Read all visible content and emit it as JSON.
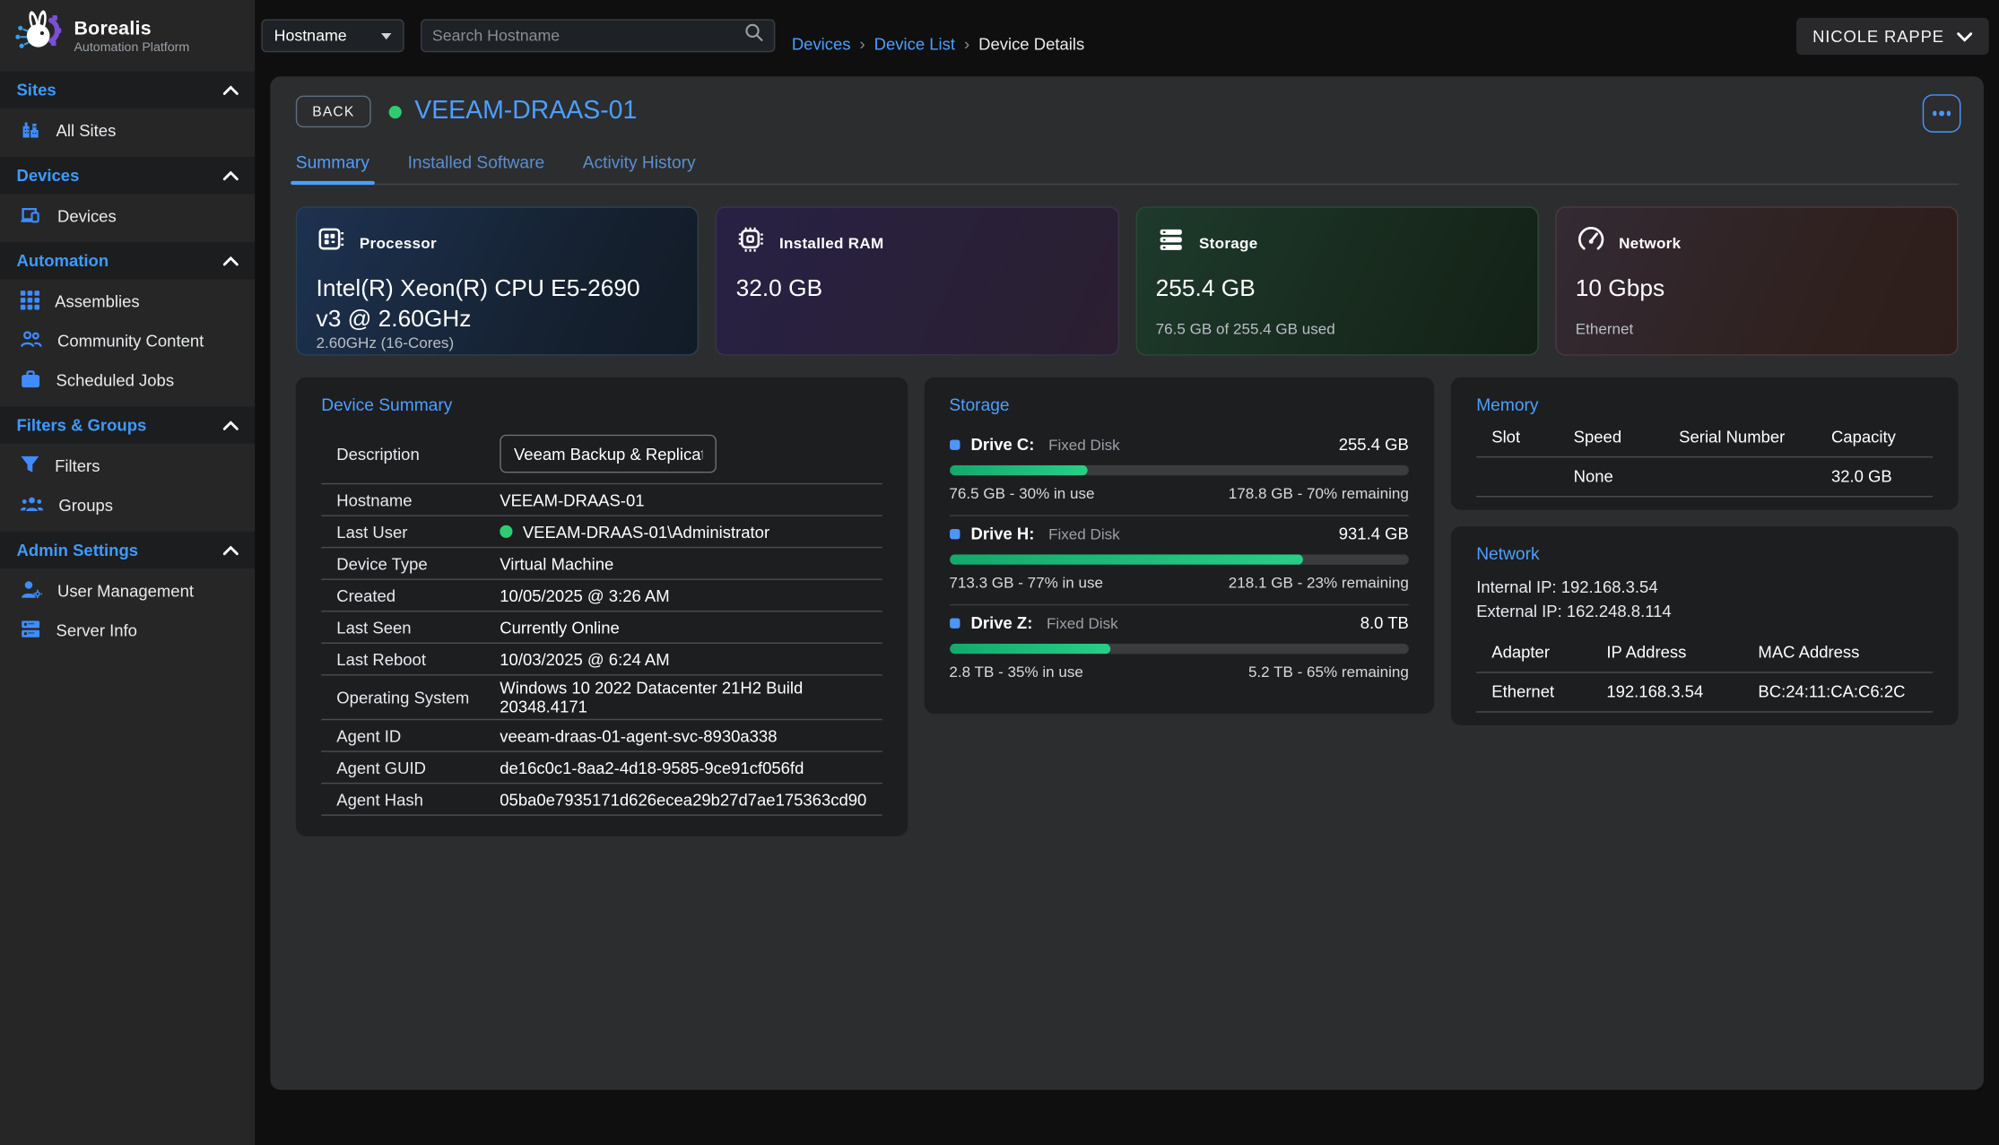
{
  "colors": {
    "accent_blue": "#4d9fff",
    "online_green": "#2ecc71",
    "progress_green": "#1fc97f"
  },
  "sidebar": {
    "logo_title": "Borealis",
    "logo_subtitle": "Automation Platform",
    "sections": [
      {
        "label": "Sites",
        "items": [
          {
            "label": "All Sites",
            "icon": "buildings-icon"
          }
        ]
      },
      {
        "label": "Devices",
        "items": [
          {
            "label": "Devices",
            "icon": "devices-icon"
          }
        ]
      },
      {
        "label": "Automation",
        "items": [
          {
            "label": "Assemblies",
            "icon": "grid-icon"
          },
          {
            "label": "Community Content",
            "icon": "people-icon"
          },
          {
            "label": "Scheduled Jobs",
            "icon": "briefcase-icon"
          }
        ]
      },
      {
        "label": "Filters & Groups",
        "items": [
          {
            "label": "Filters",
            "icon": "funnel-icon"
          },
          {
            "label": "Groups",
            "icon": "group-icon"
          }
        ]
      },
      {
        "label": "Admin Settings",
        "items": [
          {
            "label": "User Management",
            "icon": "user-gear-icon"
          },
          {
            "label": "Server Info",
            "icon": "server-icon"
          }
        ]
      }
    ]
  },
  "topbar": {
    "filter_select": "Hostname",
    "search_placeholder": "Search Hostname",
    "breadcrumbs": [
      "Devices",
      "Device List",
      "Device Details"
    ],
    "breadcrumb_sep": "›",
    "user": "NICOLE RAPPE"
  },
  "device_header": {
    "back": "BACK",
    "title": "VEEAM-DRAAS-01",
    "tabs": [
      "Summary",
      "Installed Software",
      "Activity History"
    ],
    "active_tab": "Summary"
  },
  "stat_cards": [
    {
      "label": "Processor",
      "value": "Intel(R) Xeon(R) CPU E5-2690 v3 @ 2.60GHz",
      "sub": "2.60GHz (16-Cores)",
      "icon": "cpu-icon"
    },
    {
      "label": "Installed RAM",
      "value": "32.0 GB",
      "sub": "",
      "icon": "ram-chip-icon"
    },
    {
      "label": "Storage",
      "value": "255.4 GB",
      "sub": "76.5 GB of 255.4 GB used",
      "icon": "storage-stack-icon"
    },
    {
      "label": "Network",
      "value": "10 Gbps",
      "sub": "Ethernet",
      "icon": "gauge-icon"
    }
  ],
  "device_summary": {
    "title": "Device Summary",
    "description_label": "Description",
    "description_value": "Veeam Backup & Replication",
    "rows": [
      {
        "label": "Hostname",
        "value": "VEEAM-DRAAS-01"
      },
      {
        "label": "Last User",
        "value": "VEEAM-DRAAS-01\\Administrator",
        "online": true
      },
      {
        "label": "Device Type",
        "value": "Virtual Machine"
      },
      {
        "label": "Created",
        "value": "10/05/2025 @ 3:26 AM"
      },
      {
        "label": "Last Seen",
        "value": "Currently Online"
      },
      {
        "label": "Last Reboot",
        "value": "10/03/2025 @ 6:24 AM"
      },
      {
        "label": "Operating System",
        "value": "Windows 10 2022 Datacenter 21H2 Build 20348.4171"
      },
      {
        "label": "Agent ID",
        "value": "veeam-draas-01-agent-svc-8930a338"
      },
      {
        "label": "Agent GUID",
        "value": "de16c0c1-8aa2-4d18-9585-9ce91cf056fd"
      },
      {
        "label": "Agent Hash",
        "value": "05ba0e7935171d626ecea29b27d7ae175363cd90"
      }
    ]
  },
  "storage_panel": {
    "title": "Storage",
    "drives": [
      {
        "name": "Drive C:",
        "type": "Fixed Disk",
        "size": "255.4 GB",
        "pct": 30,
        "used": "76.5 GB - 30% in use",
        "remaining": "178.8 GB - 70% remaining"
      },
      {
        "name": "Drive H:",
        "type": "Fixed Disk",
        "size": "931.4 GB",
        "pct": 77,
        "used": "713.3 GB - 77% in use",
        "remaining": "218.1 GB - 23% remaining"
      },
      {
        "name": "Drive Z:",
        "type": "Fixed Disk",
        "size": "8.0 TB",
        "pct": 35,
        "used": "2.8 TB - 35% in use",
        "remaining": "5.2 TB - 65% remaining"
      }
    ]
  },
  "memory_panel": {
    "title": "Memory",
    "headers": [
      "Slot",
      "Speed",
      "Serial Number",
      "Capacity"
    ],
    "rows": [
      {
        "slot": "",
        "speed": "None",
        "serial": "",
        "capacity": "32.0 GB"
      }
    ]
  },
  "network_panel": {
    "title": "Network",
    "internal_ip": "Internal IP: 192.168.3.54",
    "external_ip": "External IP: 162.248.8.114",
    "headers": [
      "Adapter",
      "IP Address",
      "MAC Address"
    ],
    "rows": [
      {
        "adapter": "Ethernet",
        "ip": "192.168.3.54",
        "mac": "BC:24:11:CA:C6:2C"
      }
    ]
  }
}
